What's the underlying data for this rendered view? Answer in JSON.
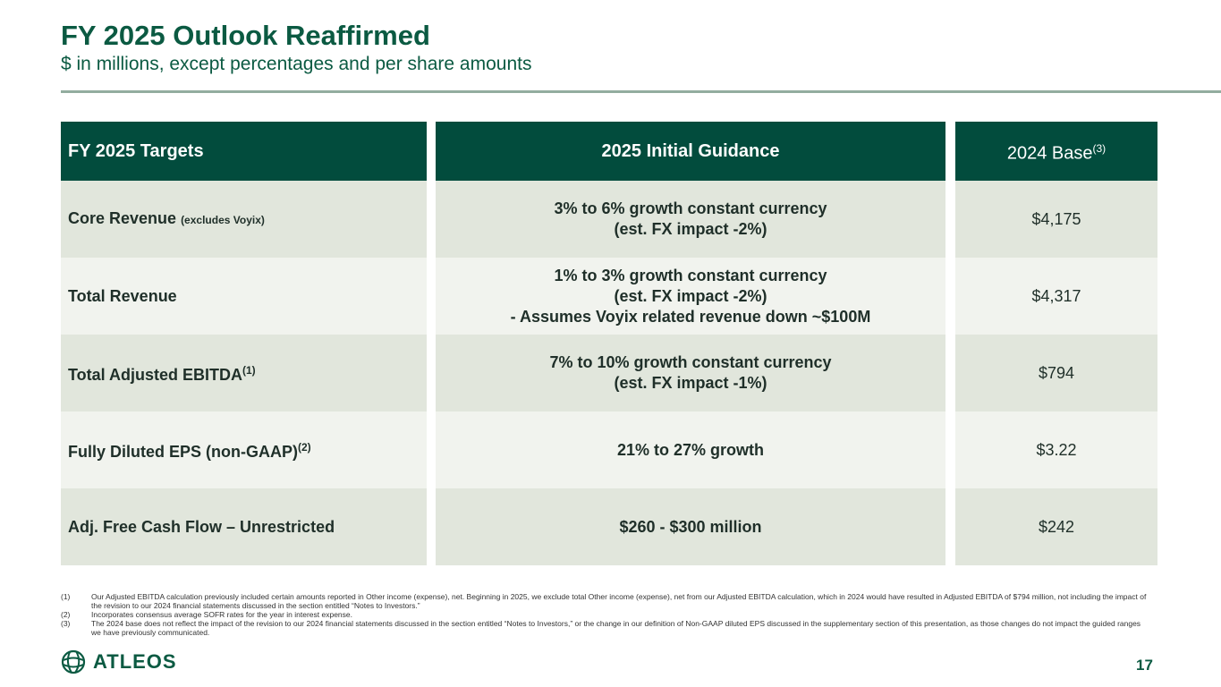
{
  "header": {
    "title": "FY 2025 Outlook Reaffirmed",
    "subtitle": "$ in millions, except percentages and per share amounts"
  },
  "table": {
    "headers": [
      {
        "text": "FY 2025 Targets"
      },
      {
        "text": "2025 Initial Guidance"
      },
      {
        "text": "2024 Base",
        "sup": "(3)"
      }
    ],
    "rows": [
      {
        "label": "Core Revenue",
        "note": "(excludes Voyix)",
        "guidance": [
          "3% to 6% growth constant currency",
          "(est. FX impact -2%)"
        ],
        "base": "$4,175"
      },
      {
        "label": "Total Revenue",
        "guidance": [
          "1% to 3% growth constant currency",
          "(est. FX impact -2%)",
          "- Assumes Voyix related revenue down ~$100M"
        ],
        "base": "$4,317"
      },
      {
        "label": "Total Adjusted EBITDA",
        "sup": "(1)",
        "guidance": [
          "7% to 10% growth constant currency",
          "(est. FX impact -1%)"
        ],
        "base": "$794"
      },
      {
        "label": "Fully Diluted EPS (non-GAAP)",
        "sup": "(2)",
        "guidance": [
          "21% to 27% growth"
        ],
        "base": "$3.22"
      },
      {
        "label": "Adj. Free Cash Flow – Unrestricted",
        "guidance": [
          "$260 - $300 million"
        ],
        "base": "$242"
      }
    ]
  },
  "footnotes": [
    {
      "marker": "(1)",
      "text": "Our Adjusted EBITDA calculation previously included certain amounts reported in Other income (expense), net. Beginning in 2025, we exclude total Other income (expense), net from our Adjusted EBITDA calculation, which in 2024 would have resulted in Adjusted EBITDA of $794 million, not including the impact of the revision to our 2024 financial statements discussed in the section entitled “Notes to Investors.”"
    },
    {
      "marker": "(2)",
      "text": "Incorporates consensus average SOFR rates for the year in interest expense."
    },
    {
      "marker": "(3)",
      "text": "The 2024 base does not reflect the impact of the revision to our 2024 financial statements discussed in the section entitled “Notes to Investors,” or the change in our definition of Non-GAAP diluted EPS discussed in the supplementary section of this presentation, as those changes do not impact the guided ranges we have previously communicated."
    }
  ],
  "footer": {
    "logo": "ATLEOS",
    "page_number": "17"
  }
}
